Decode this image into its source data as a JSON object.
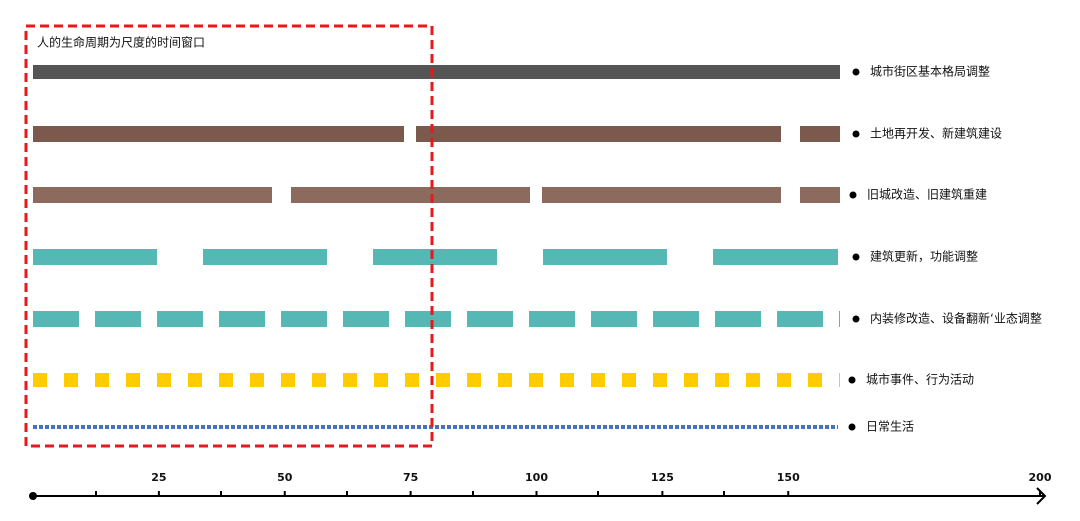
{
  "window_label": "人的生命周期为尺度的时间窗口",
  "rows": [
    "城市街区基本格局调整",
    "土地再开发、新建筑建设",
    "旧城改造、旧建筑重建",
    "建筑更新，功能调整",
    "内装修改造、设备翻新‘业态调整",
    "城市事件、行为活动",
    "日常生活"
  ],
  "axis": {
    "xlim": [
      0,
      200
    ],
    "xticks": [
      25,
      50,
      75,
      100,
      125,
      150,
      200
    ]
  }
}
